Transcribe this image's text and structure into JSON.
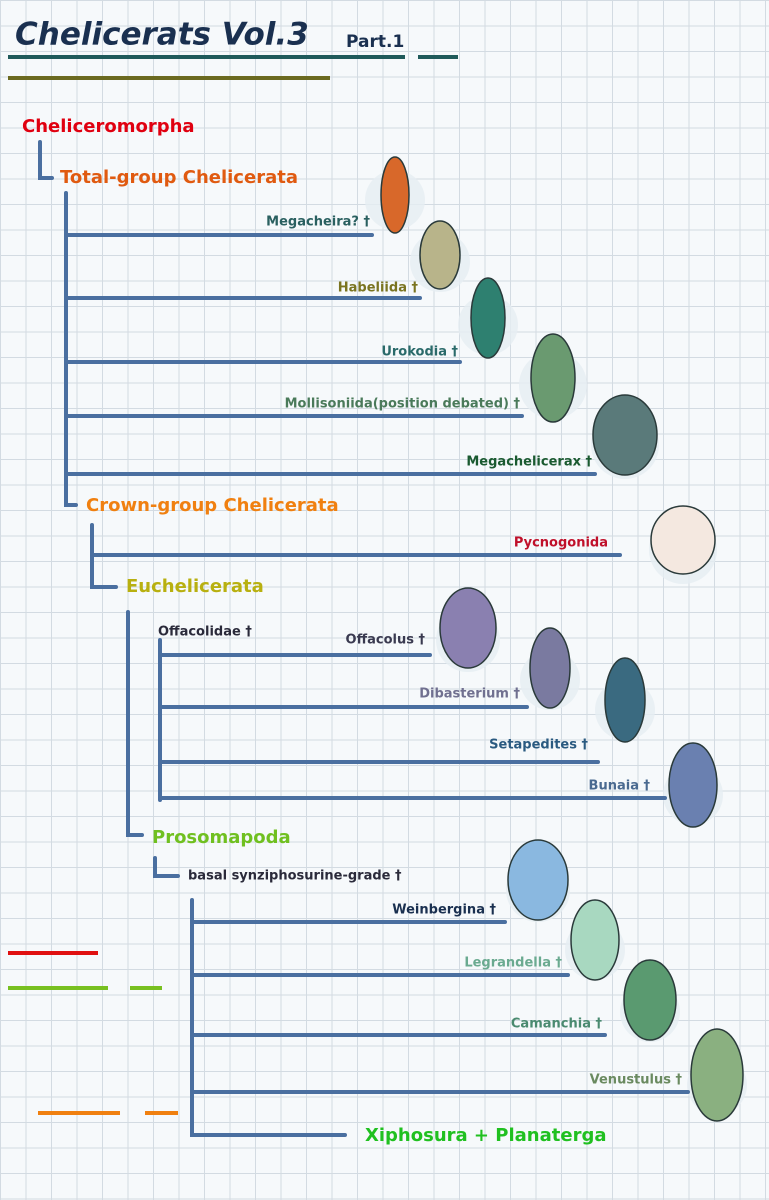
{
  "header": {
    "title": "Chelicerats Vol.3",
    "subtitle": "Part.1"
  },
  "nodes": [
    {
      "label": "Cheliceromorpha"
    },
    {
      "label": "Total-group Chelicerata"
    },
    {
      "label": "Megacheira? †"
    },
    {
      "label": "Habeliida †"
    },
    {
      "label": "Urokodia †"
    },
    {
      "label": "Mollisoniida(position debated) †"
    },
    {
      "label": "Megachelicerax †"
    },
    {
      "label": "Crown-group Chelicerata"
    },
    {
      "label": "Pycnogonida"
    },
    {
      "label": "Euchelicerata"
    },
    {
      "label": "Offacolidae †"
    },
    {
      "label": "Offacolus †"
    },
    {
      "label": "Dibasterium †"
    },
    {
      "label": "Setapedites †"
    },
    {
      "label": "Bunaia †"
    },
    {
      "label": "Prosomapoda"
    },
    {
      "label": "basal synziphosurine-grade †"
    },
    {
      "label": "Weinbergina †"
    },
    {
      "label": "Legrandella †"
    },
    {
      "label": "Camanchia †"
    },
    {
      "label": "Venustulus †"
    },
    {
      "label": "Xiphosura + Planaterga"
    }
  ]
}
